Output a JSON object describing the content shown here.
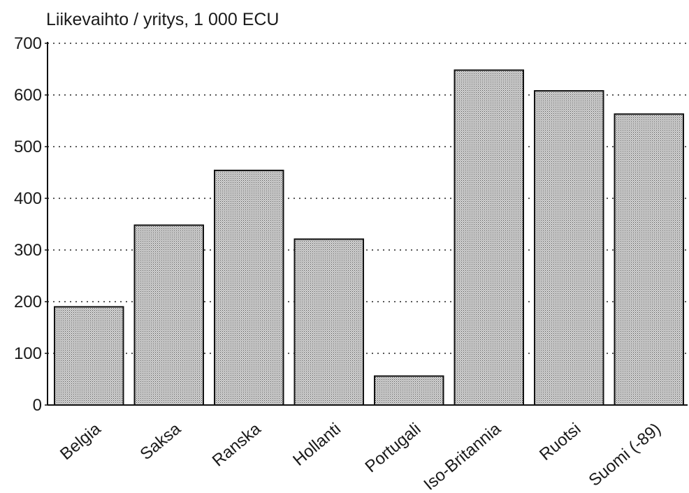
{
  "chart_data": {
    "type": "bar",
    "title": "",
    "ylabel": "Liikevaihto / yritys, 1 000 ECU",
    "xlabel": "",
    "categories": [
      "Belgia",
      "Saksa",
      "Ranska",
      "Hollanti",
      "Portugali",
      "Iso-Britannia",
      "Ruotsi",
      "Suomi (-89)"
    ],
    "values": [
      190,
      348,
      454,
      321,
      56,
      648,
      608,
      563
    ],
    "ylim": [
      0,
      700
    ],
    "yticks": [
      0,
      100,
      200,
      300,
      400,
      500,
      600,
      700
    ],
    "grid": "horizontal dotted",
    "legend": "none",
    "bar_fill": "#c9c9c9",
    "bar_stroke": "#111111"
  }
}
